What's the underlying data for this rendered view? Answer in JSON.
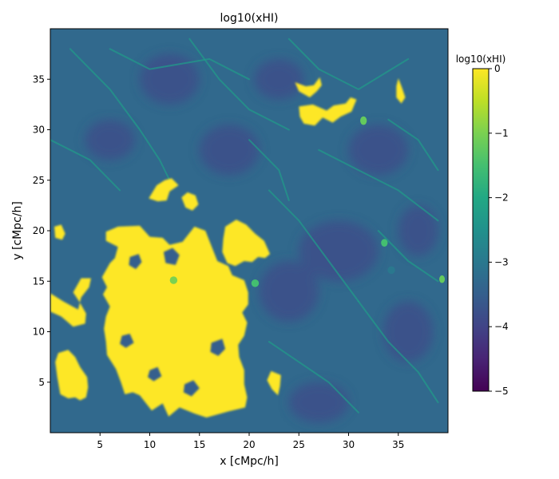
{
  "chart_data": {
    "type": "heatmap",
    "title": "log10(xHI)",
    "xlabel": "x [cMpc/h]",
    "ylabel": "y [cMpc/h]",
    "xlim": [
      0,
      40
    ],
    "ylim": [
      0,
      40
    ],
    "xticks": [
      5,
      10,
      15,
      20,
      25,
      30,
      35
    ],
    "yticks": [
      5,
      10,
      15,
      20,
      25,
      30,
      35
    ],
    "colorbar": {
      "label": "log10(xHI)",
      "range": [
        -5,
        0
      ],
      "ticks": [
        0,
        -1,
        -2,
        -3,
        -4,
        -5
      ],
      "tick_labels": [
        "0",
        "−1",
        "−2",
        "−3",
        "−4",
        "−5"
      ],
      "colormap": "viridis",
      "colors": [
        "#440154",
        "#414487",
        "#2a788e",
        "#22a884",
        "#7ad151",
        "#fde725"
      ]
    },
    "background_level": -3.3,
    "neutral_regions": [
      {
        "name": "main-region",
        "level": 0,
        "polygon": [
          [
            5.6,
            19.9
          ],
          [
            6.8,
            20.4
          ],
          [
            9.0,
            20.5
          ],
          [
            10.0,
            19.4
          ],
          [
            11.3,
            19.3
          ],
          [
            12.0,
            18.6
          ],
          [
            13.3,
            18.9
          ],
          [
            14.5,
            20.4
          ],
          [
            15.6,
            20.0
          ],
          [
            16.2,
            18.5
          ],
          [
            16.8,
            17.0
          ],
          [
            17.9,
            16.5
          ],
          [
            18.3,
            15.6
          ],
          [
            19.5,
            15.1
          ],
          [
            19.9,
            13.9
          ],
          [
            19.9,
            12.7
          ],
          [
            19.3,
            11.9
          ],
          [
            19.8,
            10.9
          ],
          [
            19.5,
            9.6
          ],
          [
            18.9,
            8.7
          ],
          [
            19.0,
            7.5
          ],
          [
            19.5,
            6.2
          ],
          [
            19.5,
            4.8
          ],
          [
            19.8,
            3.5
          ],
          [
            19.6,
            2.5
          ],
          [
            17.9,
            2.1
          ],
          [
            15.7,
            1.5
          ],
          [
            14.5,
            1.9
          ],
          [
            13.0,
            2.5
          ],
          [
            11.9,
            1.6
          ],
          [
            11.3,
            2.9
          ],
          [
            10.2,
            2.2
          ],
          [
            9.0,
            3.7
          ],
          [
            8.3,
            4.0
          ],
          [
            7.5,
            3.8
          ],
          [
            7.1,
            5.0
          ],
          [
            6.6,
            6.3
          ],
          [
            5.7,
            7.7
          ],
          [
            5.6,
            9.0
          ],
          [
            5.4,
            10.3
          ],
          [
            5.6,
            11.5
          ],
          [
            6.0,
            12.5
          ],
          [
            5.3,
            13.7
          ],
          [
            5.7,
            14.4
          ],
          [
            5.2,
            15.4
          ],
          [
            6.0,
            16.8
          ],
          [
            6.5,
            17.3
          ],
          [
            6.8,
            18.4
          ],
          [
            5.6,
            19.0
          ]
        ]
      },
      {
        "name": "west-region",
        "level": 0,
        "polygon": [
          [
            0.0,
            13.8
          ],
          [
            1.3,
            13.0
          ],
          [
            2.8,
            12.2
          ],
          [
            3.1,
            13.4
          ],
          [
            3.9,
            14.4
          ],
          [
            4.1,
            15.3
          ],
          [
            3.1,
            15.3
          ],
          [
            2.3,
            13.9
          ],
          [
            2.9,
            13.0
          ],
          [
            3.6,
            11.8
          ],
          [
            3.5,
            10.8
          ],
          [
            2.3,
            10.5
          ],
          [
            1.1,
            11.5
          ],
          [
            0.0,
            12.0
          ]
        ]
      },
      {
        "name": "southwest-region",
        "level": 0,
        "polygon": [
          [
            0.8,
            7.9
          ],
          [
            1.8,
            8.2
          ],
          [
            2.5,
            7.5
          ],
          [
            3.0,
            6.5
          ],
          [
            3.7,
            5.5
          ],
          [
            3.8,
            4.5
          ],
          [
            3.6,
            3.5
          ],
          [
            3.0,
            3.2
          ],
          [
            2.5,
            3.5
          ],
          [
            1.8,
            3.4
          ],
          [
            1.0,
            3.8
          ],
          [
            0.7,
            5.5
          ],
          [
            0.5,
            7.0
          ]
        ]
      },
      {
        "name": "north-central-region",
        "level": 0,
        "polygon": [
          [
            17.6,
            20.4
          ],
          [
            18.7,
            21.1
          ],
          [
            19.7,
            20.6
          ],
          [
            20.6,
            19.7
          ],
          [
            21.5,
            19.0
          ],
          [
            22.1,
            17.7
          ],
          [
            21.6,
            17.3
          ],
          [
            20.9,
            17.4
          ],
          [
            20.3,
            16.9
          ],
          [
            19.5,
            17.0
          ],
          [
            18.6,
            16.5
          ],
          [
            17.8,
            16.8
          ],
          [
            17.3,
            17.9
          ],
          [
            17.4,
            19.2
          ]
        ]
      },
      {
        "name": "upper-left-region",
        "level": 0,
        "polygon": [
          [
            9.9,
            23.2
          ],
          [
            10.7,
            24.5
          ],
          [
            11.5,
            25.0
          ],
          [
            12.2,
            25.2
          ],
          [
            12.9,
            24.5
          ],
          [
            12.0,
            23.9
          ],
          [
            11.7,
            23.0
          ],
          [
            10.8,
            22.9
          ]
        ]
      },
      {
        "name": "small-left-region",
        "level": 0,
        "polygon": [
          [
            13.2,
            23.3
          ],
          [
            13.8,
            23.8
          ],
          [
            14.6,
            23.5
          ],
          [
            14.9,
            22.6
          ],
          [
            14.3,
            22.0
          ],
          [
            13.6,
            22.3
          ]
        ]
      },
      {
        "name": "far-left-region",
        "level": 0,
        "polygon": [
          [
            0.4,
            20.4
          ],
          [
            1.1,
            20.6
          ],
          [
            1.5,
            19.7
          ],
          [
            1.2,
            19.1
          ],
          [
            0.5,
            19.3
          ]
        ]
      },
      {
        "name": "mid-east-region",
        "level": 0,
        "polygon": [
          [
            22.2,
            6.1
          ],
          [
            23.2,
            5.7
          ],
          [
            23.1,
            4.6
          ],
          [
            22.9,
            3.7
          ],
          [
            22.3,
            4.3
          ],
          [
            21.8,
            5.2
          ]
        ]
      },
      {
        "name": "northeast-region-a",
        "level": 0,
        "polygon": [
          [
            25.0,
            32.3
          ],
          [
            26.4,
            32.5
          ],
          [
            27.8,
            31.9
          ],
          [
            28.5,
            32.4
          ],
          [
            29.7,
            32.6
          ],
          [
            30.2,
            33.2
          ],
          [
            30.8,
            33.0
          ],
          [
            30.3,
            31.8
          ],
          [
            29.2,
            31.3
          ],
          [
            28.4,
            30.7
          ],
          [
            27.4,
            31.2
          ],
          [
            26.6,
            30.4
          ],
          [
            25.5,
            30.6
          ],
          [
            25.1,
            31.3
          ]
        ]
      },
      {
        "name": "northeast-region-b",
        "level": 0,
        "polygon": [
          [
            24.6,
            34.7
          ],
          [
            25.7,
            34.3
          ],
          [
            26.5,
            34.4
          ],
          [
            27.1,
            35.2
          ],
          [
            27.3,
            34.4
          ],
          [
            26.8,
            33.8
          ],
          [
            26.1,
            33.2
          ],
          [
            25.0,
            33.8
          ]
        ]
      },
      {
        "name": "northeast-region-c",
        "level": 0,
        "polygon": [
          [
            35.0,
            35.1
          ],
          [
            35.4,
            34.1
          ],
          [
            35.7,
            33.2
          ],
          [
            35.3,
            32.6
          ],
          [
            34.8,
            33.2
          ],
          [
            34.8,
            34.3
          ]
        ]
      }
    ],
    "ionized_holes": [
      {
        "level": -3.5,
        "polygon": [
          [
            8.0,
            17.4
          ],
          [
            8.9,
            17.7
          ],
          [
            9.2,
            16.9
          ],
          [
            8.6,
            16.2
          ],
          [
            7.9,
            16.6
          ]
        ]
      },
      {
        "level": -3.5,
        "polygon": [
          [
            11.4,
            17.9
          ],
          [
            12.3,
            18.3
          ],
          [
            13.0,
            17.6
          ],
          [
            12.6,
            16.6
          ],
          [
            11.6,
            16.8
          ]
        ]
      },
      {
        "level": -3.5,
        "polygon": [
          [
            7.2,
            9.6
          ],
          [
            8.0,
            9.8
          ],
          [
            8.4,
            8.9
          ],
          [
            7.6,
            8.4
          ],
          [
            7.0,
            8.8
          ]
        ]
      },
      {
        "level": -3.5,
        "polygon": [
          [
            13.5,
            4.8
          ],
          [
            14.4,
            5.2
          ],
          [
            15.0,
            4.4
          ],
          [
            14.2,
            3.6
          ],
          [
            13.4,
            4.0
          ]
        ]
      },
      {
        "level": -3.5,
        "polygon": [
          [
            16.2,
            8.9
          ],
          [
            17.3,
            9.3
          ],
          [
            17.6,
            8.3
          ],
          [
            16.9,
            7.6
          ],
          [
            16.1,
            8.0
          ]
        ]
      },
      {
        "level": -3.5,
        "polygon": [
          [
            10.0,
            6.2
          ],
          [
            10.8,
            6.5
          ],
          [
            11.2,
            5.6
          ],
          [
            10.4,
            5.1
          ],
          [
            9.8,
            5.5
          ]
        ]
      }
    ],
    "filaments": [
      {
        "level": -2.3,
        "points": [
          [
            2,
            38
          ],
          [
            6,
            34
          ],
          [
            9,
            30
          ],
          [
            11,
            27
          ],
          [
            12,
            25
          ]
        ]
      },
      {
        "level": -2.3,
        "points": [
          [
            14,
            39
          ],
          [
            17,
            35
          ],
          [
            20,
            32
          ],
          [
            24,
            30
          ]
        ]
      },
      {
        "level": -2.3,
        "points": [
          [
            27,
            28
          ],
          [
            31,
            26
          ],
          [
            35,
            24
          ],
          [
            39,
            21
          ]
        ]
      },
      {
        "level": -2.3,
        "points": [
          [
            22,
            24
          ],
          [
            25,
            21
          ],
          [
            28,
            17
          ],
          [
            31,
            13
          ]
        ]
      },
      {
        "level": -2.3,
        "points": [
          [
            31,
            13
          ],
          [
            34,
            9
          ],
          [
            37,
            6
          ],
          [
            39,
            3
          ]
        ]
      },
      {
        "level": -2.3,
        "points": [
          [
            22,
            9
          ],
          [
            25,
            7
          ],
          [
            28,
            5
          ],
          [
            31,
            2
          ]
        ]
      },
      {
        "level": -2.3,
        "points": [
          [
            0,
            29
          ],
          [
            4,
            27
          ],
          [
            7,
            24
          ]
        ]
      },
      {
        "level": -2.3,
        "points": [
          [
            24,
            39
          ],
          [
            27,
            36
          ],
          [
            31,
            34
          ],
          [
            36,
            37
          ]
        ]
      },
      {
        "level": -2.3,
        "points": [
          [
            33,
            20
          ],
          [
            36,
            17
          ],
          [
            39,
            15
          ]
        ]
      },
      {
        "level": -2.3,
        "points": [
          [
            6,
            38
          ],
          [
            10,
            36
          ],
          [
            16,
            37
          ],
          [
            20,
            35
          ]
        ]
      },
      {
        "level": -2.3,
        "points": [
          [
            20,
            29
          ],
          [
            23,
            26
          ],
          [
            24,
            23
          ]
        ]
      },
      {
        "level": -2.3,
        "points": [
          [
            34,
            31
          ],
          [
            37,
            29
          ],
          [
            39,
            26
          ]
        ]
      }
    ],
    "void_patches": [
      {
        "level": -3.8,
        "center": [
          29,
          18
        ],
        "radius": [
          4,
          3
        ]
      },
      {
        "level": -3.8,
        "center": [
          33,
          28
        ],
        "radius": [
          3,
          2.5
        ]
      },
      {
        "level": -3.8,
        "center": [
          24,
          14
        ],
        "radius": [
          3,
          3
        ]
      },
      {
        "level": -3.8,
        "center": [
          36,
          10
        ],
        "radius": [
          2.5,
          3
        ]
      },
      {
        "level": -3.8,
        "center": [
          18,
          28
        ],
        "radius": [
          3,
          2.5
        ]
      },
      {
        "level": -3.8,
        "center": [
          6,
          29
        ],
        "radius": [
          2.5,
          2
        ]
      },
      {
        "level": -3.8,
        "center": [
          27,
          3
        ],
        "radius": [
          3,
          2
        ]
      },
      {
        "level": -3.8,
        "center": [
          12,
          35
        ],
        "radius": [
          3,
          2.5
        ]
      },
      {
        "level": -3.8,
        "center": [
          37,
          20
        ],
        "radius": [
          2,
          2.5
        ]
      },
      {
        "level": -3.8,
        "center": [
          23,
          35
        ],
        "radius": [
          2.5,
          2
        ]
      }
    ],
    "hotspots": [
      {
        "level": -1.0,
        "center": [
          12.4,
          15.1
        ],
        "radius": [
          0.3,
          0.3
        ]
      },
      {
        "level": -3.0,
        "center": [
          34.3,
          16.1
        ],
        "radius": [
          0.3,
          0.3
        ]
      },
      {
        "level": -1.2,
        "center": [
          31.5,
          30.9
        ],
        "radius": [
          0.25,
          0.35
        ]
      },
      {
        "level": -1.2,
        "center": [
          39.4,
          15.2
        ],
        "radius": [
          0.2,
          0.3
        ]
      },
      {
        "level": -1.5,
        "center": [
          20.6,
          14.8
        ],
        "radius": [
          0.3,
          0.3
        ]
      },
      {
        "level": -1.5,
        "center": [
          33.6,
          18.8
        ],
        "radius": [
          0.25,
          0.3
        ]
      }
    ]
  }
}
